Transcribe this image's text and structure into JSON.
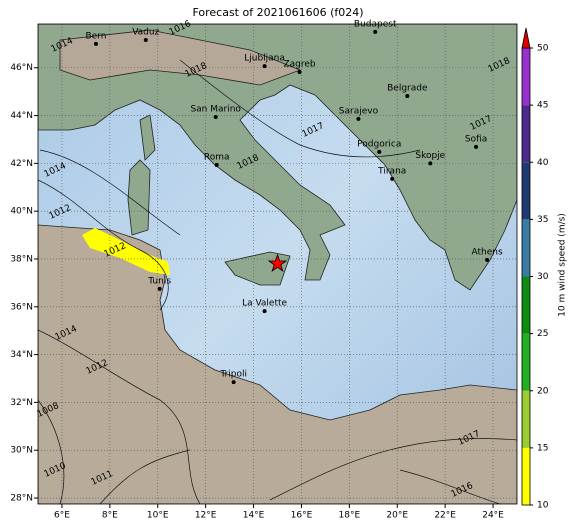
{
  "chart_data": {
    "type": "map",
    "title": "Forecast of 2021061606 (f024)",
    "xlim": [
      5,
      25
    ],
    "ylim": [
      27.75,
      47.83
    ],
    "xticks": [
      {
        "value": 6,
        "label": "6°E"
      },
      {
        "value": 8,
        "label": "8°E"
      },
      {
        "value": 10,
        "label": "10°E"
      },
      {
        "value": 12,
        "label": "12°E"
      },
      {
        "value": 14,
        "label": "14°E"
      },
      {
        "value": 16,
        "label": "16°E"
      },
      {
        "value": 18,
        "label": "18°E"
      },
      {
        "value": 20,
        "label": "20°E"
      },
      {
        "value": 22,
        "label": "22°E"
      },
      {
        "value": 24,
        "label": "24°E"
      }
    ],
    "yticks": [
      {
        "value": 28,
        "label": "28°N"
      },
      {
        "value": 30,
        "label": "30°N"
      },
      {
        "value": 32,
        "label": "32°N"
      },
      {
        "value": 34,
        "label": "34°N"
      },
      {
        "value": 36,
        "label": "36°N"
      },
      {
        "value": 38,
        "label": "38°N"
      },
      {
        "value": 40,
        "label": "40°N"
      },
      {
        "value": 42,
        "label": "42°N"
      },
      {
        "value": 44,
        "label": "44°N"
      },
      {
        "value": 46,
        "label": "46°N"
      }
    ],
    "grid": true,
    "cities": [
      {
        "name": "Bern",
        "lon": 7.42,
        "lat": 47.0
      },
      {
        "name": "Vaduz",
        "lon": 9.5,
        "lat": 47.16
      },
      {
        "name": "Budapest",
        "lon": 19.08,
        "lat": 47.5
      },
      {
        "name": "Ljubljana",
        "lon": 14.46,
        "lat": 46.07
      },
      {
        "name": "Zagreb",
        "lon": 15.92,
        "lat": 45.82
      },
      {
        "name": "Belgrade",
        "lon": 20.42,
        "lat": 44.82
      },
      {
        "name": "San Marino",
        "lon": 12.42,
        "lat": 43.94
      },
      {
        "name": "Sarajevo",
        "lon": 18.38,
        "lat": 43.86
      },
      {
        "name": "Roma",
        "lon": 12.46,
        "lat": 41.93
      },
      {
        "name": "Podgorica",
        "lon": 19.25,
        "lat": 42.48
      },
      {
        "name": "Sofia",
        "lon": 23.29,
        "lat": 42.69
      },
      {
        "name": "Skopje",
        "lon": 21.38,
        "lat": 42.0
      },
      {
        "name": "Tirana",
        "lon": 19.79,
        "lat": 41.35
      },
      {
        "name": "Athens",
        "lon": 23.75,
        "lat": 37.96
      },
      {
        "name": "Tunis",
        "lon": 10.08,
        "lat": 36.75
      },
      {
        "name": "La Valette",
        "lon": 14.46,
        "lat": 35.82
      },
      {
        "name": "Tripoli",
        "lon": 13.17,
        "lat": 32.85
      }
    ],
    "marker": {
      "lon": 15.0,
      "lat": 37.8,
      "color": "#ff0000"
    },
    "isobar_labels": [
      1014,
      1014,
      1012,
      1012,
      1016,
      1018,
      1018,
      1018,
      1017,
      1017,
      1017,
      1014,
      1012,
      1008,
      1010,
      1011,
      1016
    ],
    "colorbar": {
      "label": "10 m wind speed (m/s)",
      "lim": [
        10,
        50
      ],
      "ticks": [
        10,
        15,
        20,
        25,
        30,
        35,
        40,
        45,
        50
      ],
      "colors": [
        "#ffff00",
        "#9acd32",
        "#22b022",
        "#108a10",
        "#3a7ca5",
        "#1f3b73",
        "#4b2a8c",
        "#9932cc"
      ],
      "extend_color": "#e00000"
    }
  }
}
